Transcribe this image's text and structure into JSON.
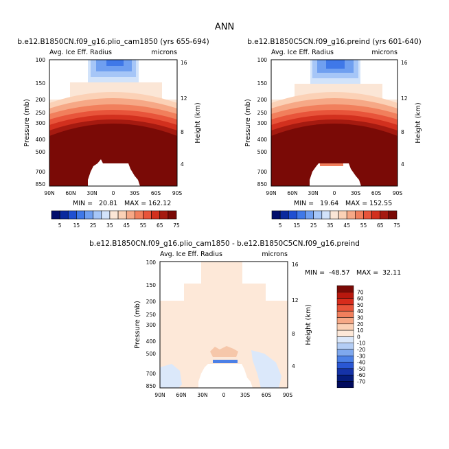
{
  "figure_title": "ANN",
  "chart_data": [
    {
      "type": "heatmap",
      "title": "b.e12.B1850CN.f09_g16.plio_cam1850 (yrs 655-694)",
      "variable_label": "Avg. Ice Eff. Radius",
      "units_label": "microns",
      "xlabel": "",
      "ylabel": "Pressure (mb)",
      "ylabel_right": "Height (km)",
      "x_ticks": [
        "90N",
        "60N",
        "30N",
        "0",
        "30S",
        "60S",
        "90S"
      ],
      "y_ticks": [
        "100",
        "150",
        "200",
        "250",
        "300",
        "400",
        "500",
        "700",
        "850"
      ],
      "y_right_ticks": [
        "16",
        "12",
        "8",
        "4"
      ],
      "stats": {
        "min_label": "MIN =",
        "min": "20.81",
        "max_label": "MAX =",
        "max": "162.12"
      },
      "colorbar": {
        "levels": [
          "5",
          "15",
          "25",
          "35",
          "45",
          "55",
          "65",
          "75"
        ],
        "colors": [
          "#000d6b",
          "#0a2a9e",
          "#1f4fd1",
          "#3f78e8",
          "#6f9ff0",
          "#a6c6f7",
          "#d2e3fa",
          "#fbe6d6",
          "#fbd1b6",
          "#f6a886",
          "#f17f5c",
          "#e8543a",
          "#d2301e",
          "#a51a10",
          "#7a0a06"
        ]
      }
    },
    {
      "type": "heatmap",
      "title": "b.e12.B1850C5CN.f09_g16.preind (yrs 601-640)",
      "variable_label": "Avg. Ice Eff. Radius",
      "units_label": "microns",
      "xlabel": "",
      "ylabel": "Pressure (mb)",
      "ylabel_right": "Height (km)",
      "x_ticks": [
        "90N",
        "60N",
        "30N",
        "0",
        "30S",
        "60S",
        "90S"
      ],
      "y_ticks": [
        "100",
        "150",
        "200",
        "250",
        "300",
        "400",
        "500",
        "700",
        "850"
      ],
      "y_right_ticks": [
        "16",
        "12",
        "8",
        "4"
      ],
      "stats": {
        "min_label": "MIN =",
        "min": "19.64",
        "max_label": "MAX =",
        "max": "152.55"
      },
      "colorbar": {
        "levels": [
          "5",
          "15",
          "25",
          "35",
          "45",
          "55",
          "65",
          "75"
        ],
        "colors": [
          "#000d6b",
          "#0a2a9e",
          "#1f4fd1",
          "#3f78e8",
          "#6f9ff0",
          "#a6c6f7",
          "#d2e3fa",
          "#fbe6d6",
          "#fbd1b6",
          "#f6a886",
          "#f17f5c",
          "#e8543a",
          "#d2301e",
          "#a51a10",
          "#7a0a06"
        ]
      }
    },
    {
      "type": "heatmap",
      "title": "b.e12.B1850CN.f09_g16.plio_cam1850 - b.e12.B1850C5CN.f09_g16.preind",
      "variable_label": "Avg. Ice Eff. Radius",
      "units_label": "microns",
      "xlabel": "",
      "ylabel": "Pressure (mb)",
      "ylabel_right": "Height (km)",
      "x_ticks": [
        "90N",
        "60N",
        "30N",
        "0",
        "30S",
        "60S",
        "90S"
      ],
      "y_ticks": [
        "100",
        "150",
        "200",
        "250",
        "300",
        "400",
        "500",
        "700",
        "850"
      ],
      "y_right_ticks": [
        "16",
        "12",
        "8",
        "4"
      ],
      "stats": {
        "min_label": "MIN =",
        "min": "-48.57",
        "max_label": "MAX =",
        "max": "32.11"
      },
      "colorbar": {
        "levels": [
          "70",
          "60",
          "50",
          "40",
          "30",
          "20",
          "10",
          "0",
          "-10",
          "-20",
          "-30",
          "-40",
          "-50",
          "-60",
          "-70"
        ],
        "colors": [
          "#7a0a06",
          "#b8180e",
          "#d72c1c",
          "#e8543a",
          "#f17f5c",
          "#f6a886",
          "#fbd1b6",
          "#fde8d8",
          "#dbe8fa",
          "#b3cdf5",
          "#7fa8ee",
          "#4c80e6",
          "#2a57d4",
          "#1533a8",
          "#051c7c",
          "#000a5e"
        ]
      }
    }
  ]
}
